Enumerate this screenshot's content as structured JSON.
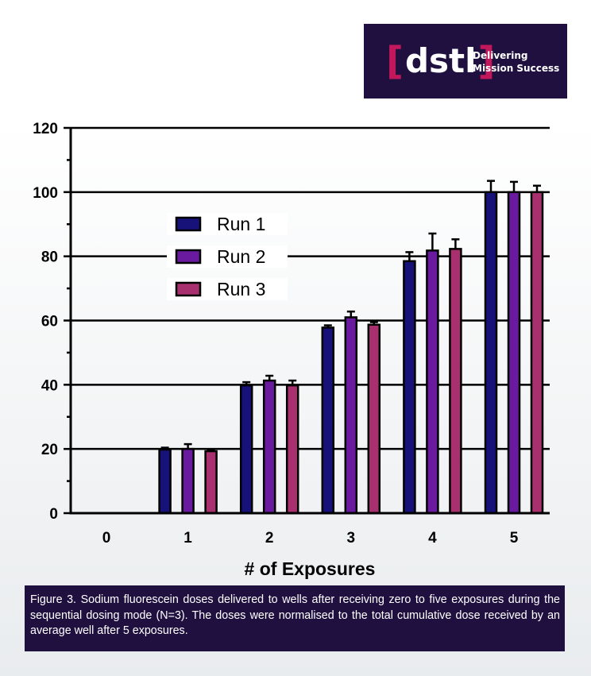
{
  "logo": {
    "brand": "dstl",
    "open_bracket": "[",
    "close_bracket": "]",
    "tagline_line1": "Delivering",
    "tagline_line2": "Mission Success",
    "background_color": "#1f1040",
    "bracket_color": "#c2185b"
  },
  "chart_data": {
    "type": "bar",
    "title": "",
    "xlabel": "# of Exposures",
    "ylabel": "",
    "ylim": [
      0,
      120
    ],
    "yticks": [
      0,
      20,
      40,
      60,
      80,
      100,
      120
    ],
    "categories": [
      "0",
      "1",
      "2",
      "3",
      "4",
      "5"
    ],
    "grid": "horizontal",
    "legend_position": "upper-left",
    "series": [
      {
        "name": "Run 1",
        "color": "#17127a",
        "values": [
          0,
          19.8,
          39.8,
          57.8,
          78.5,
          100
        ],
        "errors": [
          0,
          0.6,
          1.0,
          0.7,
          2.8,
          3.5
        ]
      },
      {
        "name": "Run 2",
        "color": "#6a1a9e",
        "values": [
          0,
          20.0,
          41.3,
          61.0,
          81.8,
          100
        ],
        "errors": [
          0,
          1.5,
          1.5,
          1.8,
          5.3,
          3.2
        ]
      },
      {
        "name": "Run 3",
        "color": "#a8306e",
        "values": [
          0,
          19.3,
          39.8,
          58.7,
          82.3,
          100
        ],
        "errors": [
          0,
          0.4,
          1.5,
          0.8,
          3.0,
          2.0
        ]
      }
    ]
  },
  "caption": {
    "text": "Figure 3. Sodium fluorescein doses delivered to wells after receiving zero to five exposures during the sequential dosing mode (N=3). The doses were normalised to the total cumulative dose received by an average well after 5 exposures."
  }
}
